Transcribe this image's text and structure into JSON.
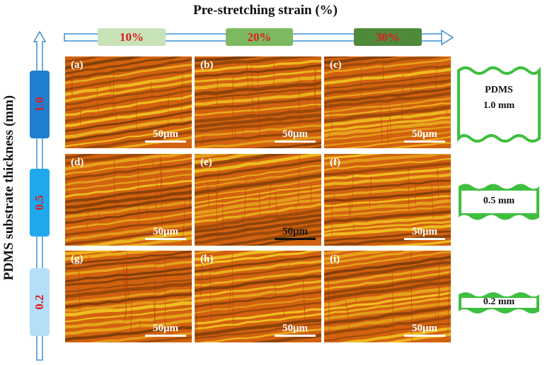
{
  "header": {
    "x_title": "Pre-stretching strain (%)"
  },
  "strain_levels": [
    {
      "label": "10%",
      "color": "#c8e3b8"
    },
    {
      "label": "20%",
      "color": "#7cb961"
    },
    {
      "label": "30%",
      "color": "#4f8a3b"
    }
  ],
  "side": {
    "y_title": "PDMS substrate thickness (mm)"
  },
  "thickness_levels": [
    {
      "label": "1.0",
      "color": "#1f7fd1"
    },
    {
      "label": "0.5",
      "color": "#1ea9ef"
    },
    {
      "label": "0.2",
      "color": "#b5def8"
    }
  ],
  "panels": [
    {
      "label": "(a)",
      "scale": "50μm"
    },
    {
      "label": "(b)",
      "scale": "50μm"
    },
    {
      "label": "(c)",
      "scale": "50μm"
    },
    {
      "label": "(d)",
      "scale": "50μm"
    },
    {
      "label": "(e)",
      "scale": "50μm"
    },
    {
      "label": "(f)",
      "scale": "50μm"
    },
    {
      "label": "(g)",
      "scale": "50μm"
    },
    {
      "label": "(h)",
      "scale": "50μm"
    },
    {
      "label": "(i)",
      "scale": "50μm"
    }
  ],
  "substrates": [
    {
      "line1": "PDMS",
      "line2": "1.0 mm"
    },
    {
      "line1": "0.5 mm"
    },
    {
      "line1": "0.2 mm"
    }
  ],
  "colors": {
    "texture_bg": "#d2620f",
    "texture_light": "#f2c622",
    "texture_dark": "#7a3b08",
    "substrate_green": "#3fbf3f"
  }
}
